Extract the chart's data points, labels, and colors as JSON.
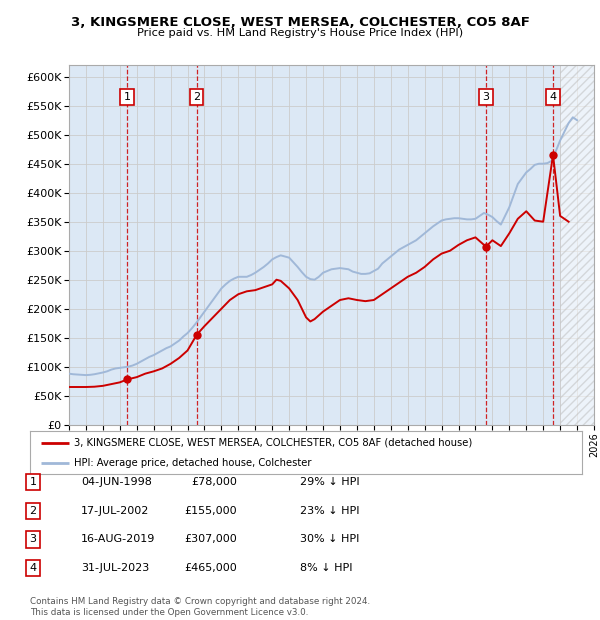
{
  "title_line1": "3, KINGSMERE CLOSE, WEST MERSEA, COLCHESTER, CO5 8AF",
  "title_line2": "Price paid vs. HM Land Registry's House Price Index (HPI)",
  "xlim_start": 1995.0,
  "xlim_end": 2026.0,
  "ylim_min": 0,
  "ylim_max": 620000,
  "yticks": [
    0,
    50000,
    100000,
    150000,
    200000,
    250000,
    300000,
    350000,
    400000,
    450000,
    500000,
    550000,
    600000
  ],
  "ytick_labels": [
    "£0",
    "£50K",
    "£100K",
    "£150K",
    "£200K",
    "£250K",
    "£300K",
    "£350K",
    "£400K",
    "£450K",
    "£500K",
    "£550K",
    "£600K"
  ],
  "transactions": [
    {
      "num": 1,
      "date": "04-JUN-1998",
      "year": 1998.43,
      "price": 78000,
      "pct": "29%"
    },
    {
      "num": 2,
      "date": "17-JUL-2002",
      "year": 2002.54,
      "price": 155000,
      "pct": "23%"
    },
    {
      "num": 3,
      "date": "16-AUG-2019",
      "year": 2019.62,
      "price": 307000,
      "pct": "30%"
    },
    {
      "num": 4,
      "date": "31-JUL-2023",
      "year": 2023.58,
      "price": 465000,
      "pct": "8%"
    }
  ],
  "hpi_color": "#a0b8d8",
  "sold_color": "#cc0000",
  "grid_color": "#cccccc",
  "background_color": "#ffffff",
  "plot_bg_color": "#dce8f5",
  "legend_label_sold": "3, KINGSMERE CLOSE, WEST MERSEA, COLCHESTER, CO5 8AF (detached house)",
  "legend_label_hpi": "HPI: Average price, detached house, Colchester",
  "footer": "Contains HM Land Registry data © Crown copyright and database right 2024.\nThis data is licensed under the Open Government Licence v3.0.",
  "hpi_data_years": [
    1995.0,
    1995.25,
    1995.5,
    1995.75,
    1996.0,
    1996.25,
    1996.5,
    1996.75,
    1997.0,
    1997.25,
    1997.5,
    1997.75,
    1998.0,
    1998.25,
    1998.5,
    1998.75,
    1999.0,
    1999.25,
    1999.5,
    1999.75,
    2000.0,
    2000.25,
    2000.5,
    2000.75,
    2001.0,
    2001.25,
    2001.5,
    2001.75,
    2002.0,
    2002.25,
    2002.5,
    2002.75,
    2003.0,
    2003.25,
    2003.5,
    2003.75,
    2004.0,
    2004.25,
    2004.5,
    2004.75,
    2005.0,
    2005.25,
    2005.5,
    2005.75,
    2006.0,
    2006.25,
    2006.5,
    2006.75,
    2007.0,
    2007.25,
    2007.5,
    2007.75,
    2008.0,
    2008.25,
    2008.5,
    2008.75,
    2009.0,
    2009.25,
    2009.5,
    2009.75,
    2010.0,
    2010.25,
    2010.5,
    2010.75,
    2011.0,
    2011.25,
    2011.5,
    2011.75,
    2012.0,
    2012.25,
    2012.5,
    2012.75,
    2013.0,
    2013.25,
    2013.5,
    2013.75,
    2014.0,
    2014.25,
    2014.5,
    2014.75,
    2015.0,
    2015.25,
    2015.5,
    2015.75,
    2016.0,
    2016.25,
    2016.5,
    2016.75,
    2017.0,
    2017.25,
    2017.5,
    2017.75,
    2018.0,
    2018.25,
    2018.5,
    2018.75,
    2019.0,
    2019.25,
    2019.5,
    2019.75,
    2020.0,
    2020.25,
    2020.5,
    2020.75,
    2021.0,
    2021.25,
    2021.5,
    2021.75,
    2022.0,
    2022.25,
    2022.5,
    2022.75,
    2023.0,
    2023.25,
    2023.5,
    2023.75,
    2024.0,
    2024.25,
    2024.5,
    2024.75,
    2025.0
  ],
  "hpi_data_values": [
    88000,
    87000,
    86500,
    86000,
    85500,
    86000,
    87000,
    88500,
    90000,
    92000,
    95000,
    97000,
    98000,
    99000,
    100000,
    102000,
    105000,
    109000,
    113000,
    117000,
    120000,
    124000,
    128000,
    132000,
    135000,
    140000,
    145000,
    152000,
    158000,
    166000,
    175000,
    185000,
    195000,
    205000,
    215000,
    225000,
    235000,
    242000,
    248000,
    252000,
    255000,
    255000,
    255000,
    258000,
    262000,
    267000,
    272000,
    278000,
    285000,
    289000,
    292000,
    290000,
    288000,
    280000,
    272000,
    263000,
    255000,
    251000,
    250000,
    255000,
    262000,
    265000,
    268000,
    269000,
    270000,
    269000,
    268000,
    264000,
    262000,
    260000,
    260000,
    261000,
    265000,
    269000,
    278000,
    284000,
    290000,
    296000,
    302000,
    306000,
    310000,
    314000,
    318000,
    324000,
    330000,
    336000,
    342000,
    347000,
    352000,
    354000,
    355000,
    356000,
    356000,
    355000,
    354000,
    354000,
    355000,
    360000,
    365000,
    362000,
    358000,
    351000,
    345000,
    360000,
    375000,
    395000,
    415000,
    425000,
    435000,
    441000,
    448000,
    450000,
    450000,
    451000,
    455000,
    472000,
    490000,
    505000,
    520000,
    530000,
    525000
  ],
  "sold_data_years": [
    1995.0,
    1995.5,
    1996.0,
    1996.5,
    1997.0,
    1997.5,
    1998.0,
    1998.43,
    1999.0,
    1999.5,
    2000.0,
    2000.5,
    2001.0,
    2001.5,
    2002.0,
    2002.54,
    2003.0,
    2003.5,
    2004.0,
    2004.5,
    2005.0,
    2005.5,
    2006.0,
    2006.5,
    2007.0,
    2007.25,
    2007.5,
    2008.0,
    2008.5,
    2009.0,
    2009.25,
    2009.5,
    2010.0,
    2010.5,
    2011.0,
    2011.5,
    2012.0,
    2012.5,
    2013.0,
    2013.5,
    2014.0,
    2014.5,
    2015.0,
    2015.5,
    2016.0,
    2016.5,
    2017.0,
    2017.5,
    2018.0,
    2018.5,
    2019.0,
    2019.62,
    2020.0,
    2020.5,
    2021.0,
    2021.5,
    2022.0,
    2022.5,
    2023.0,
    2023.58,
    2024.0,
    2024.5
  ],
  "sold_data_values": [
    65000,
    65000,
    65000,
    65500,
    67000,
    70000,
    73000,
    78000,
    82000,
    88000,
    92000,
    97000,
    105000,
    115000,
    128000,
    155000,
    170000,
    185000,
    200000,
    215000,
    225000,
    230000,
    232000,
    237000,
    242000,
    250000,
    248000,
    235000,
    215000,
    185000,
    178000,
    182000,
    195000,
    205000,
    215000,
    218000,
    215000,
    213000,
    215000,
    225000,
    235000,
    245000,
    255000,
    262000,
    272000,
    285000,
    295000,
    300000,
    310000,
    318000,
    323000,
    307000,
    318000,
    308000,
    330000,
    355000,
    368000,
    352000,
    350000,
    465000,
    360000,
    350000
  ]
}
